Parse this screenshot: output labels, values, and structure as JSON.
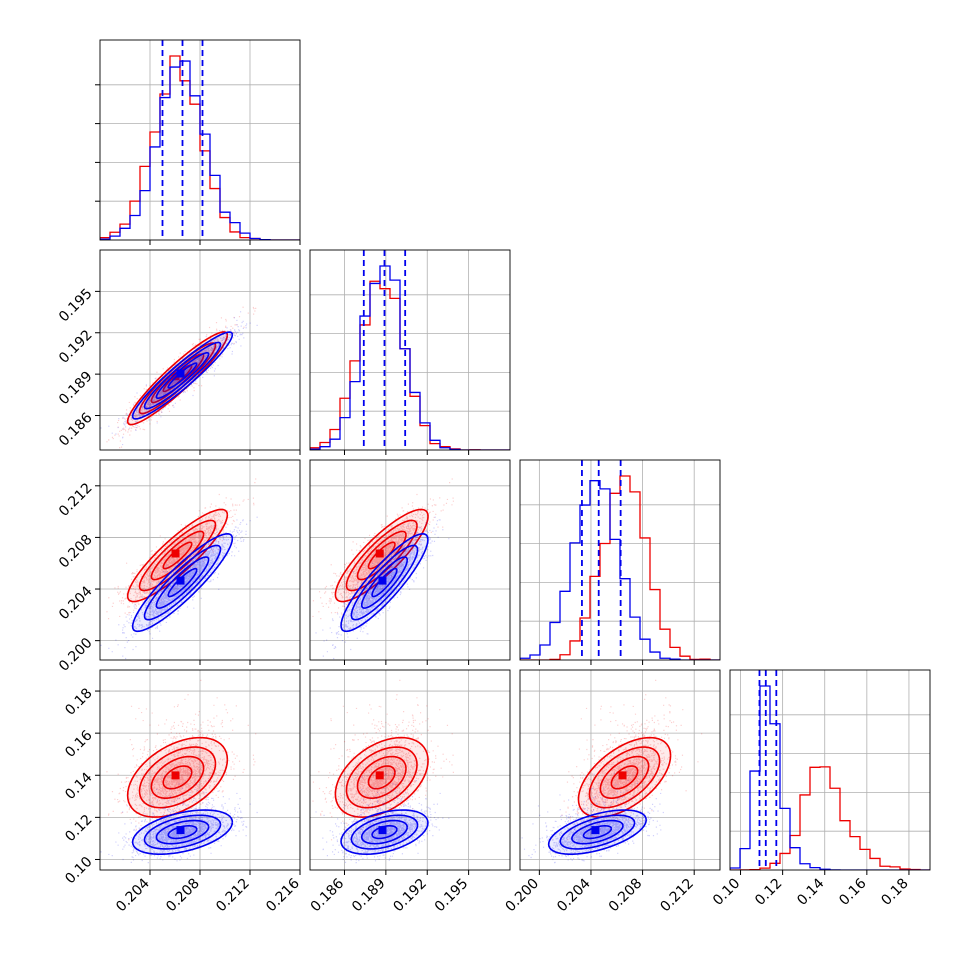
{
  "colors": {
    "red": "#ee0000",
    "blue": "#0000ee",
    "grid": "#b0b0b0",
    "axis": "#000000"
  },
  "chart_data": {
    "type": "corner",
    "grid": true,
    "params": [
      {
        "range": [
          0.2,
          0.216
        ],
        "ticks": [
          0.204,
          0.208,
          0.212,
          0.216
        ],
        "tick_labels": [
          "0.204",
          "0.208",
          "0.212",
          "0.216"
        ]
      },
      {
        "range": [
          0.1835,
          0.198
        ],
        "ticks": [
          0.186,
          0.189,
          0.192,
          0.195
        ],
        "tick_labels": [
          "0.186",
          "0.189",
          "0.192",
          "0.195"
        ]
      },
      {
        "range": [
          0.1985,
          0.214
        ],
        "ticks": [
          0.2,
          0.204,
          0.208,
          0.212
        ],
        "tick_labels": [
          "0.200",
          "0.204",
          "0.208",
          "0.212"
        ]
      },
      {
        "range": [
          0.095,
          0.19
        ],
        "ticks": [
          0.1,
          0.12,
          0.14,
          0.16,
          0.18
        ],
        "tick_labels": [
          "0.10",
          "0.12",
          "0.14",
          "0.16",
          "0.18"
        ]
      }
    ],
    "series": [
      {
        "color": "red",
        "mean": [
          0.2062,
          0.1887,
          0.2066,
          0.139
        ],
        "std": [
          0.0019,
          0.0016,
          0.0017,
          0.009
        ],
        "corr": [
          [
            1.0,
            0.93,
            0.88,
            0.45
          ],
          [
            0.93,
            1.0,
            0.85,
            0.42
          ],
          [
            0.88,
            0.85,
            1.0,
            0.55
          ],
          [
            0.45,
            0.42,
            0.55,
            1.0
          ]
        ]
      },
      {
        "color": "blue",
        "mean": [
          0.2066,
          0.1889,
          0.2045,
          0.113
        ],
        "std": [
          0.0019,
          0.0015,
          0.0018,
          0.005
        ],
        "corr": [
          [
            1.0,
            0.94,
            0.9,
            0.45
          ],
          [
            0.94,
            1.0,
            0.88,
            0.42
          ],
          [
            0.9,
            0.88,
            1.0,
            0.55
          ],
          [
            0.45,
            0.42,
            0.55,
            1.0
          ]
        ]
      }
    ],
    "quantile_lines": {
      "color": "blue",
      "values": [
        [
          0.205,
          0.2066,
          0.2082
        ],
        [
          0.1874,
          0.1889,
          0.1904
        ],
        [
          0.2033,
          0.2046,
          0.2063
        ],
        [
          0.109,
          0.112,
          0.117
        ]
      ]
    }
  }
}
